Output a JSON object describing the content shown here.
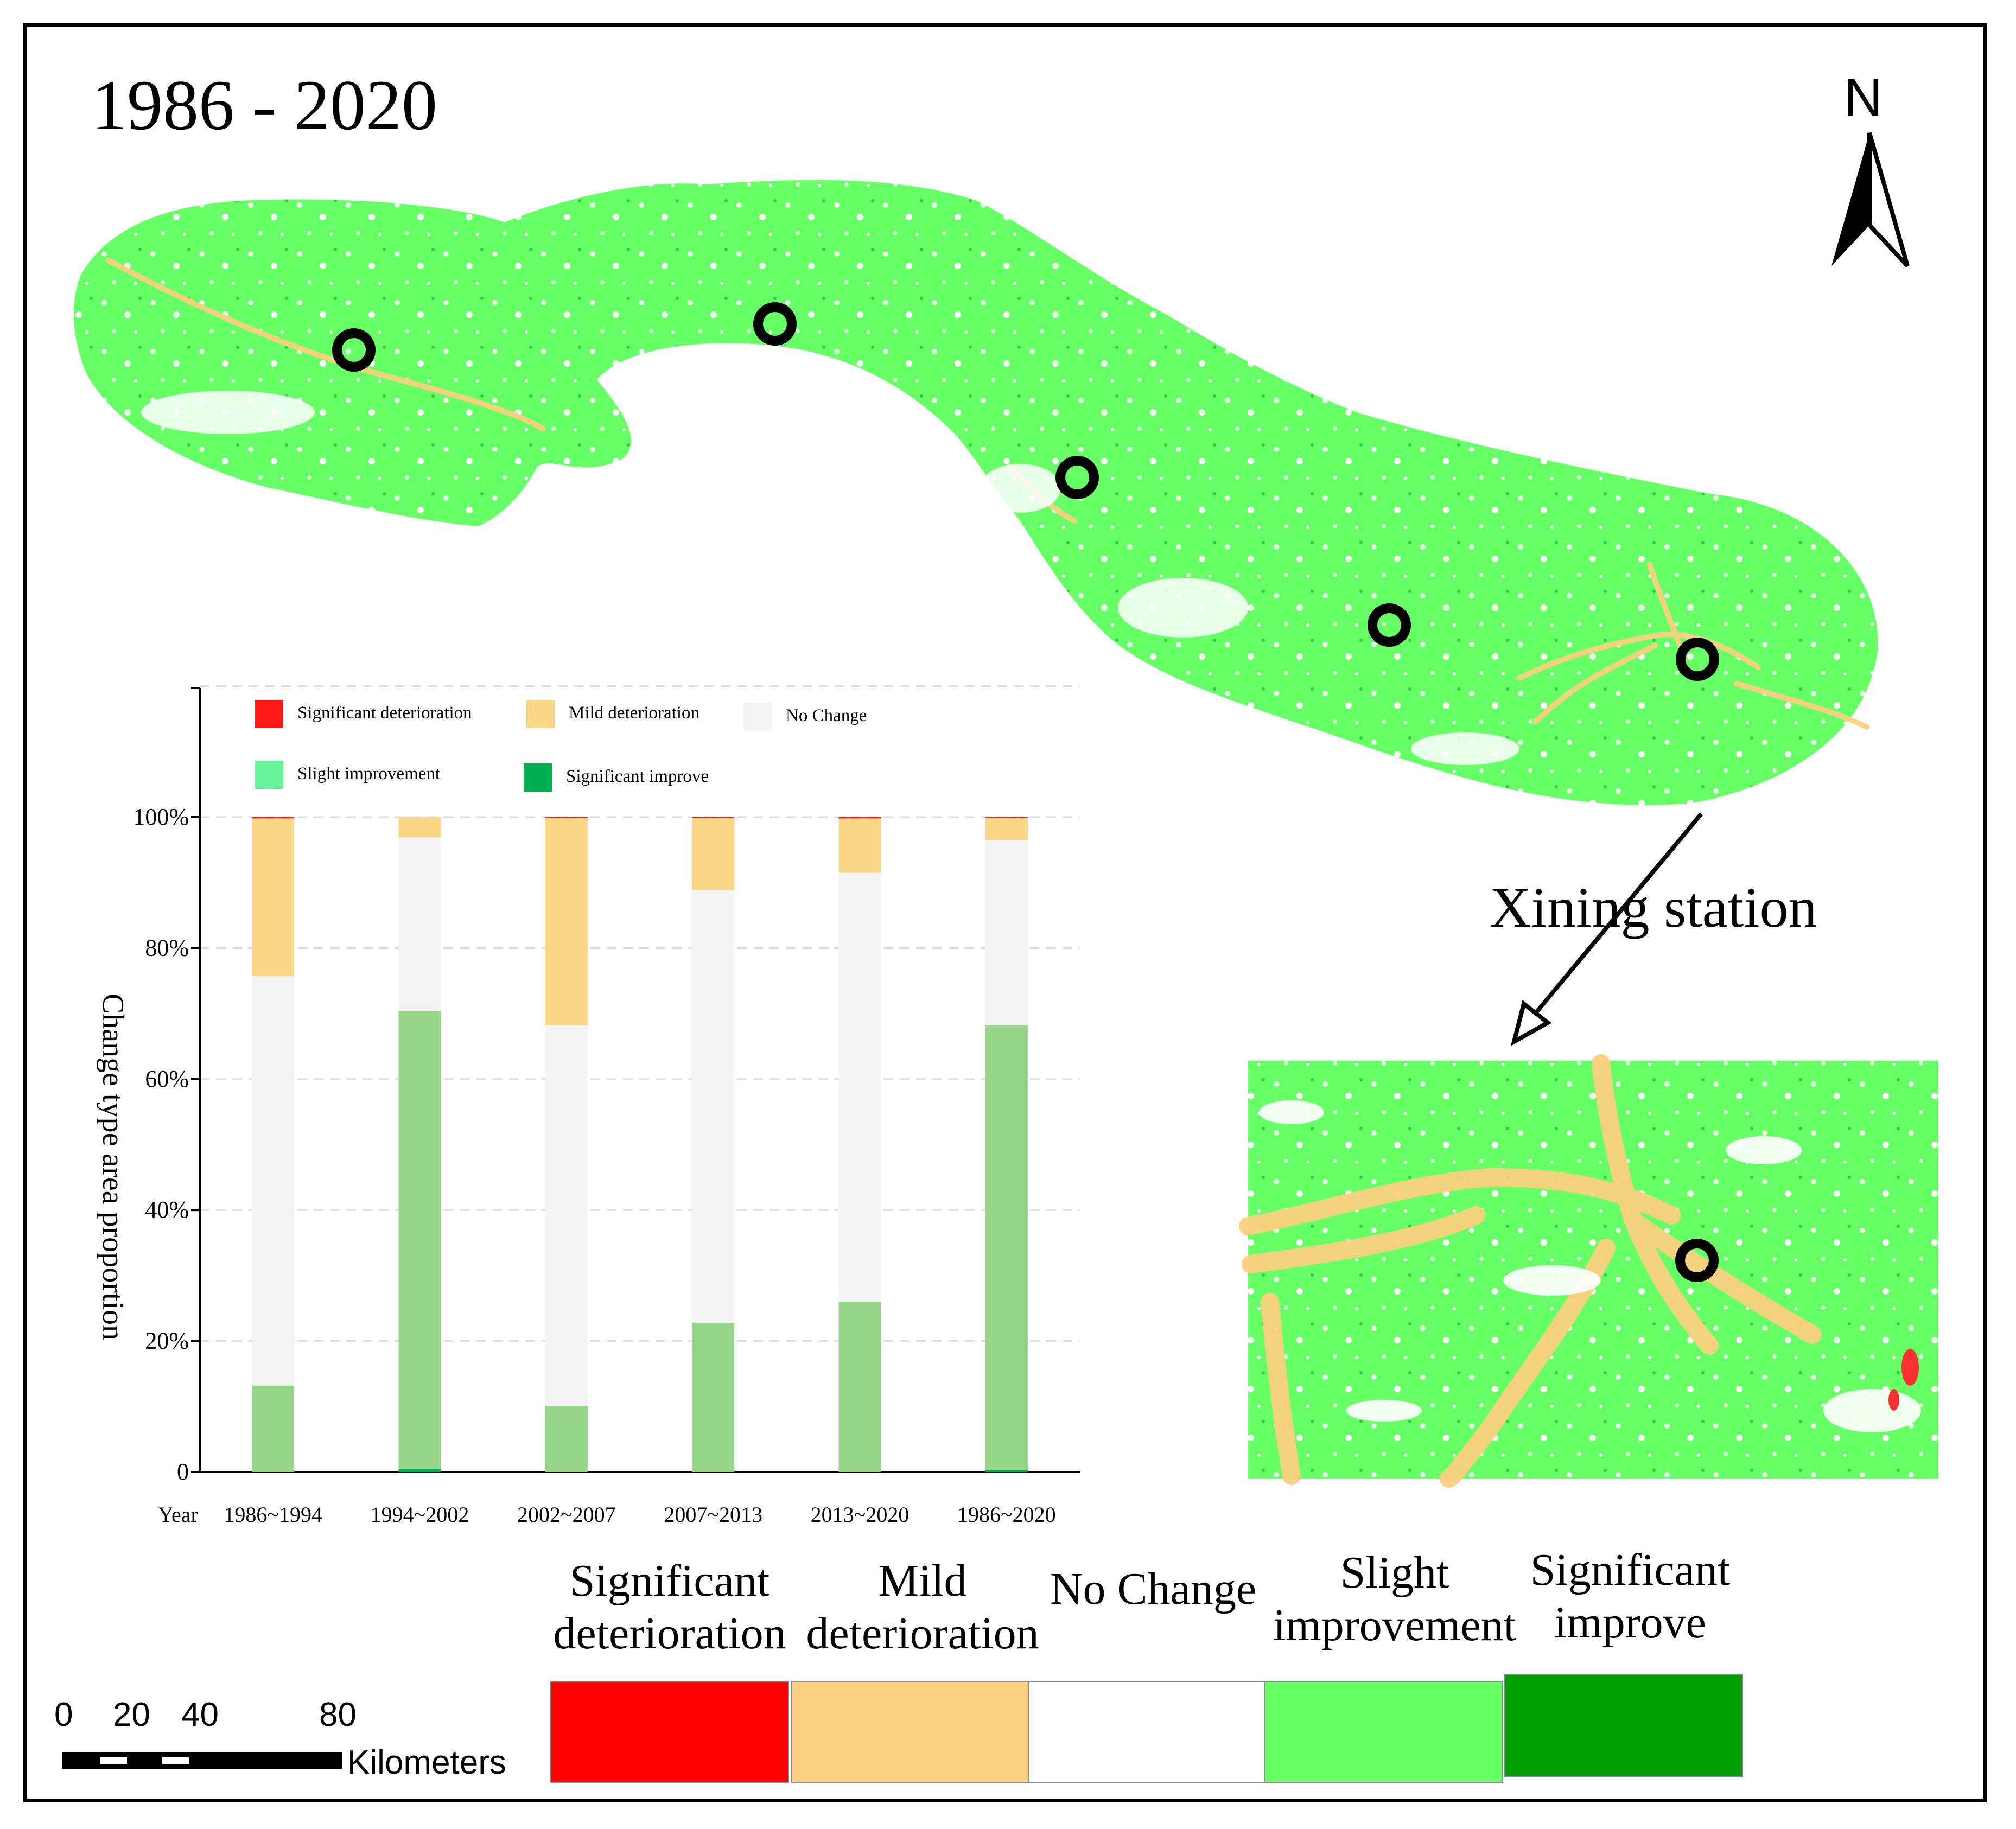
{
  "map": {
    "title": "1986 - 2020",
    "north_arrow": {
      "label": "N",
      "icon": "north-arrow-icon"
    },
    "station_label": "Xining station",
    "map_legend": [
      {
        "label": "Significant deterioration",
        "color": "#ff0000"
      },
      {
        "label": "Mild deterioration",
        "color": "#fbd080"
      },
      {
        "label": "No Change",
        "color": "#ffffff"
      },
      {
        "label": "Slight improvement",
        "color": "#66ff66"
      },
      {
        "label": "Significant improve",
        "color": "#00a000"
      }
    ],
    "scale_bar": {
      "ticks": [
        "0",
        "20",
        "40",
        "80"
      ],
      "units": "Kilometers"
    },
    "colors": {
      "region_fill": "#66ff66",
      "marker": "#000000"
    }
  },
  "chart_data": {
    "type": "bar",
    "stacked": true,
    "x_prefix": "Year",
    "categories": [
      "1986~1994",
      "1994~2002",
      "2002~2007",
      "2007~2013",
      "2013~2020",
      "1986~2020"
    ],
    "ylabel": "Change type area proportion",
    "ytick_labels": [
      "0",
      "20%",
      "40%",
      "60%",
      "80%",
      "100%"
    ],
    "ylim": [
      0,
      120
    ],
    "legend_position": "top-left",
    "series": [
      {
        "name": "Significant improve",
        "color": "#00b050",
        "values": [
          0,
          0.5,
          0,
          0,
          0,
          0.3
        ]
      },
      {
        "name": "Slight improvement",
        "color": "#97d68a",
        "values": [
          13.2,
          69.9,
          10.1,
          22.8,
          26.0,
          67.9
        ]
      },
      {
        "name": "No Change",
        "color": "#f4f4f4",
        "values": [
          62.5,
          26.5,
          58.1,
          66.1,
          65.5,
          28.3
        ]
      },
      {
        "name": "Mild deterioration",
        "color": "#fad687",
        "values": [
          24.1,
          3.1,
          31.7,
          11.0,
          8.3,
          3.4
        ]
      },
      {
        "name": "Significant deterioration",
        "color": "#ff1a1a",
        "values": [
          0.2,
          0,
          0.1,
          0.1,
          0.2,
          0.1
        ]
      }
    ],
    "legend_order": [
      "Significant deterioration",
      "Mild deterioration",
      "No Change",
      "Slight improvement",
      "Significant improve"
    ],
    "legend_colors": {
      "Slight improvement": "#66f59a",
      "Significant improve": "#00b050"
    }
  }
}
